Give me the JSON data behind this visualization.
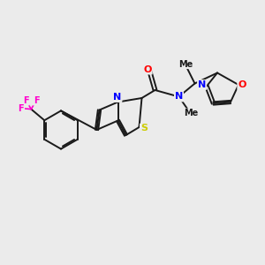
{
  "background_color": "#ebebeb",
  "bond_color": "#1a1a1a",
  "atom_colors": {
    "N": "#0000ff",
    "O": "#ff0000",
    "S": "#cccc00",
    "F": "#ff00cc",
    "C": "#1a1a1a"
  },
  "figsize": [
    3.0,
    3.0
  ],
  "dpi": 100
}
